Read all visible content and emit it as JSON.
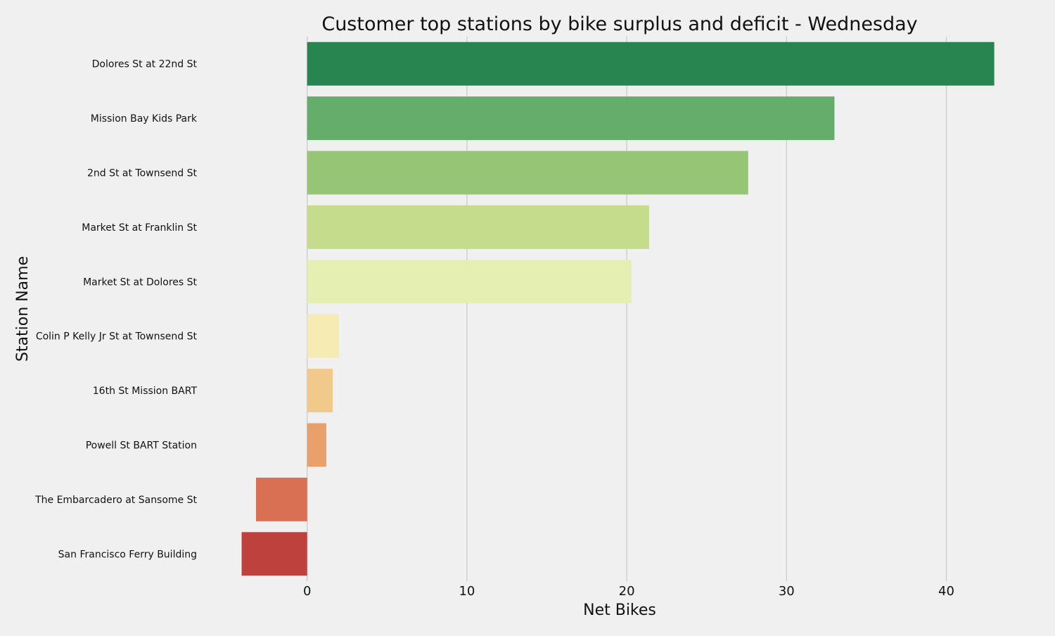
{
  "chart_data": {
    "type": "bar",
    "orientation": "horizontal",
    "title": "Customer top stations by bike surplus and deficit - Wednesday",
    "xlabel": "Net Bikes",
    "ylabel": "Station Name",
    "xlim": [
      -4.3,
      43.5
    ],
    "xticks": [
      0,
      10,
      20,
      30,
      40
    ],
    "xtick_labels": [
      "0",
      "10",
      "20",
      "30",
      "40"
    ],
    "grid": "x-major",
    "categories": [
      "Dolores St at 22nd St",
      "Mission Bay Kids Park",
      "2nd St at Townsend St",
      "Market St at Franklin St",
      "Market St at Dolores St",
      "Colin P Kelly Jr St at Townsend St",
      "16th St Mission BART",
      "Powell St BART Station",
      "The Embarcadero at Sansome St",
      "San Francisco Ferry Building"
    ],
    "values": [
      43,
      33,
      27.6,
      21.4,
      20.3,
      2,
      1.6,
      1.2,
      -3.2,
      -4.1
    ],
    "colors": [
      "#288550",
      "#64ad6a",
      "#95c575",
      "#c4dc8c",
      "#e6efb2",
      "#f5ebb3",
      "#f0c98b",
      "#e9a06a",
      "#d97054",
      "#be413e"
    ]
  }
}
